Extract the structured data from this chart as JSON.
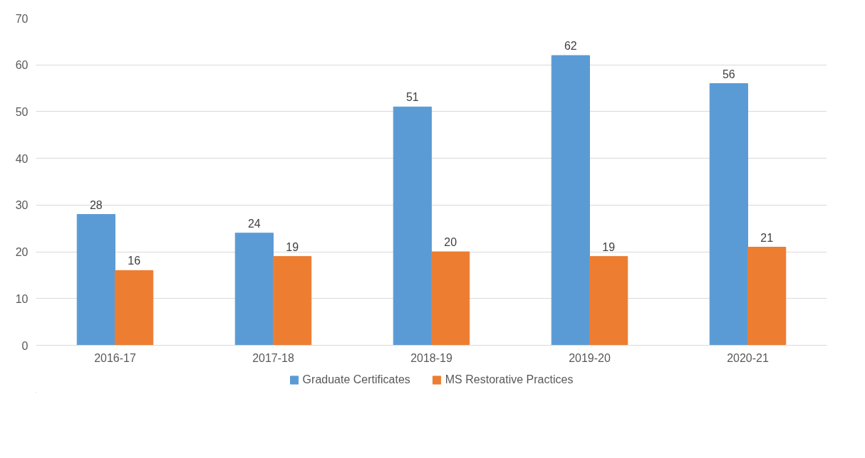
{
  "chart_data": {
    "type": "bar",
    "categories": [
      "2016-17",
      "2017-18",
      "2018-19",
      "2019-20",
      "2020-21"
    ],
    "series": [
      {
        "name": "Graduate Certificates",
        "color": "#5b9bd5",
        "values": [
          28,
          24,
          51,
          62,
          56
        ]
      },
      {
        "name": "MS Restorative Practices",
        "color": "#ed7d31",
        "values": [
          16,
          19,
          20,
          19,
          21
        ]
      }
    ],
    "ylim": [
      0,
      70
    ],
    "yticks": [
      0,
      10,
      20,
      30,
      40,
      50,
      60,
      70
    ],
    "grid": "y",
    "legend": "bottom",
    "data_labels": true
  }
}
